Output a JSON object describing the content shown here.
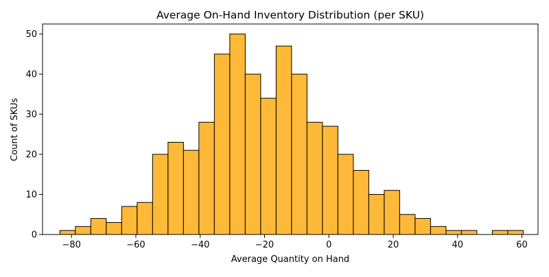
{
  "chart_data": {
    "type": "bar",
    "title": "Average On-Hand Inventory Distribution (per SKU)",
    "xlabel": "Average Quantity on Hand",
    "ylabel": "Count of SKUs",
    "xlim": [
      -89,
      65
    ],
    "ylim": [
      0,
      52.5
    ],
    "xticks": [
      -80,
      -60,
      -40,
      -20,
      0,
      20,
      40,
      60
    ],
    "yticks": [
      0,
      10,
      20,
      30,
      40,
      50
    ],
    "grid": false,
    "bin_width": 4.8,
    "bar_color": "#ffb938",
    "edge_color": "#000000",
    "bins": [
      {
        "x_start": -83.6,
        "count": 1
      },
      {
        "x_start": -78.8,
        "count": 2
      },
      {
        "x_start": -74.0,
        "count": 4
      },
      {
        "x_start": -69.2,
        "count": 3
      },
      {
        "x_start": -64.4,
        "count": 7
      },
      {
        "x_start": -59.6,
        "count": 8
      },
      {
        "x_start": -54.8,
        "count": 20
      },
      {
        "x_start": -50.0,
        "count": 23
      },
      {
        "x_start": -45.2,
        "count": 21
      },
      {
        "x_start": -40.4,
        "count": 28
      },
      {
        "x_start": -35.6,
        "count": 45
      },
      {
        "x_start": -30.8,
        "count": 50
      },
      {
        "x_start": -26.0,
        "count": 40
      },
      {
        "x_start": -21.2,
        "count": 34
      },
      {
        "x_start": -16.4,
        "count": 47
      },
      {
        "x_start": -11.6,
        "count": 40
      },
      {
        "x_start": -6.8,
        "count": 28
      },
      {
        "x_start": -2.0,
        "count": 27
      },
      {
        "x_start": 2.8,
        "count": 20
      },
      {
        "x_start": 7.6,
        "count": 16
      },
      {
        "x_start": 12.4,
        "count": 10
      },
      {
        "x_start": 17.2,
        "count": 11
      },
      {
        "x_start": 22.0,
        "count": 5
      },
      {
        "x_start": 26.8,
        "count": 4
      },
      {
        "x_start": 31.6,
        "count": 2
      },
      {
        "x_start": 36.4,
        "count": 1
      },
      {
        "x_start": 41.2,
        "count": 1
      },
      {
        "x_start": 46.0,
        "count": 0
      },
      {
        "x_start": 50.8,
        "count": 1
      },
      {
        "x_start": 55.6,
        "count": 1
      }
    ]
  }
}
